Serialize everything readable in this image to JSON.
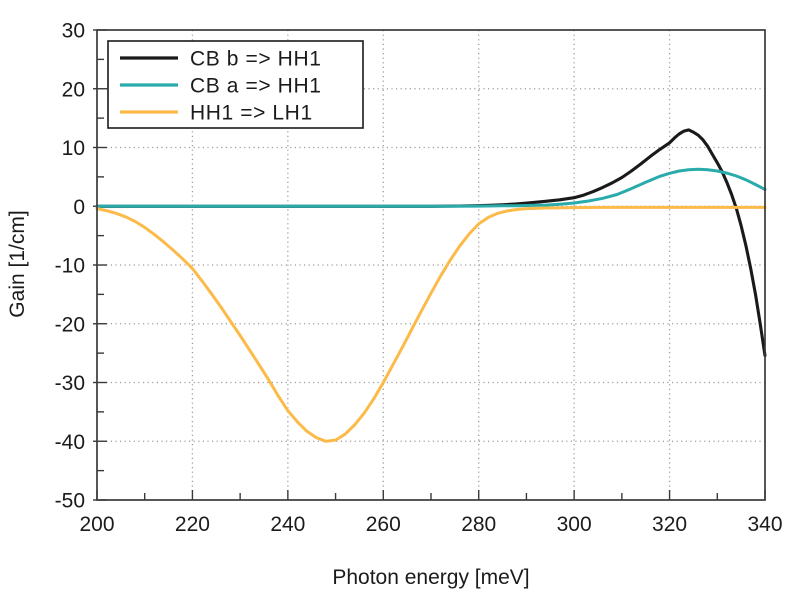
{
  "figure": {
    "background": "#ffffff",
    "frame_color": "#3a3a3a",
    "grid_color": "#9c9c9c",
    "text_color": "#1b1b1b"
  },
  "axes": {
    "x": {
      "label": "Photon energy [meV]",
      "min": 200,
      "max": 340,
      "major_ticks": [
        200,
        220,
        240,
        260,
        280,
        300,
        320,
        340
      ],
      "minor_ticks": [
        210,
        230,
        250,
        270,
        290,
        310,
        330
      ],
      "grid_at": [
        220,
        240,
        260,
        280,
        300,
        320
      ]
    },
    "y": {
      "label": "Gain [1/cm]",
      "min": -50,
      "max": 30,
      "major_ticks": [
        30,
        20,
        10,
        0,
        -10,
        -20,
        -30,
        -40,
        -50
      ],
      "minor_ticks": [
        25,
        15,
        5,
        -5,
        -15,
        -25,
        -35,
        -45
      ],
      "grid_at": [
        20,
        10,
        0,
        -10,
        -20,
        -30,
        -40
      ]
    }
  },
  "legend": {
    "position": "top-left",
    "entries": [
      {
        "label": "CB b => HH1",
        "color": "#1a1a1a"
      },
      {
        "label": "CB a => HH1",
        "color": "#2aabab"
      },
      {
        "label": "HH1 => LH1",
        "color": "#fcba49"
      }
    ]
  },
  "chart_data": {
    "type": "line",
    "title": "",
    "xlabel": "Photon energy [meV]",
    "ylabel": "Gain [1/cm]",
    "xlim": [
      200,
      340
    ],
    "ylim": [
      -50,
      30
    ],
    "grid": true,
    "legend_position": "top-left",
    "series": [
      {
        "name": "CB b => HH1",
        "color": "#1a1a1a",
        "width": 3.1,
        "points": [
          [
            200,
            0
          ],
          [
            220,
            0
          ],
          [
            240,
            0
          ],
          [
            260,
            0
          ],
          [
            270,
            0
          ],
          [
            276,
            0.05
          ],
          [
            280,
            0.1
          ],
          [
            283,
            0.18
          ],
          [
            285,
            0.25
          ],
          [
            288,
            0.4
          ],
          [
            291,
            0.6
          ],
          [
            294,
            0.85
          ],
          [
            297,
            1.1
          ],
          [
            300,
            1.45
          ],
          [
            302,
            1.9
          ],
          [
            304,
            2.5
          ],
          [
            306,
            3.2
          ],
          [
            308,
            4.0
          ],
          [
            310,
            4.9
          ],
          [
            312,
            6.0
          ],
          [
            314,
            7.2
          ],
          [
            316,
            8.5
          ],
          [
            318,
            9.7
          ],
          [
            320,
            10.8
          ],
          [
            321,
            11.6
          ],
          [
            322,
            12.3
          ],
          [
            323,
            12.8
          ],
          [
            324,
            13.0
          ],
          [
            325,
            12.6
          ],
          [
            326,
            12.1
          ],
          [
            327,
            11.3
          ],
          [
            328,
            10.2
          ],
          [
            329,
            8.8
          ],
          [
            330,
            7.4
          ],
          [
            331,
            5.9
          ],
          [
            332,
            4.1
          ],
          [
            333,
            2.0
          ],
          [
            334,
            -0.4
          ],
          [
            335,
            -3.3
          ],
          [
            336,
            -6.7
          ],
          [
            337,
            -10.6
          ],
          [
            338,
            -15.0
          ],
          [
            339,
            -20.0
          ],
          [
            340,
            -25.4
          ]
        ]
      },
      {
        "name": "CB a => HH1",
        "color": "#2aabab",
        "width": 3.0,
        "points": [
          [
            200,
            0
          ],
          [
            220,
            0
          ],
          [
            240,
            0
          ],
          [
            260,
            0
          ],
          [
            275,
            0
          ],
          [
            280,
            0.03
          ],
          [
            285,
            0.07
          ],
          [
            288,
            0.1
          ],
          [
            291,
            0.15
          ],
          [
            294,
            0.2
          ],
          [
            297,
            0.35
          ],
          [
            300,
            0.55
          ],
          [
            303,
            0.9
          ],
          [
            306,
            1.35
          ],
          [
            309,
            2.0
          ],
          [
            312,
            3.0
          ],
          [
            315,
            4.1
          ],
          [
            318,
            5.1
          ],
          [
            320,
            5.6
          ],
          [
            322,
            6.0
          ],
          [
            324,
            6.2
          ],
          [
            326,
            6.3
          ],
          [
            328,
            6.2
          ],
          [
            330,
            6.0
          ],
          [
            332,
            5.65
          ],
          [
            334,
            5.15
          ],
          [
            336,
            4.5
          ],
          [
            338,
            3.7
          ],
          [
            340,
            2.85
          ]
        ]
      },
      {
        "name": "HH1 => LH1",
        "color": "#fcba49",
        "width": 3.0,
        "points": [
          [
            200,
            -0.4
          ],
          [
            202,
            -0.75
          ],
          [
            204,
            -1.2
          ],
          [
            206,
            -1.8
          ],
          [
            208,
            -2.6
          ],
          [
            210,
            -3.6
          ],
          [
            212,
            -4.8
          ],
          [
            214,
            -6.1
          ],
          [
            216,
            -7.5
          ],
          [
            218,
            -9.0
          ],
          [
            220,
            -10.6
          ],
          [
            222,
            -12.7
          ],
          [
            224,
            -14.9
          ],
          [
            226,
            -17.2
          ],
          [
            228,
            -19.6
          ],
          [
            230,
            -22.0
          ],
          [
            232,
            -24.5
          ],
          [
            234,
            -27.0
          ],
          [
            236,
            -29.6
          ],
          [
            238,
            -32.3
          ],
          [
            240,
            -34.8
          ],
          [
            242,
            -36.7
          ],
          [
            244,
            -38.3
          ],
          [
            246,
            -39.4
          ],
          [
            248,
            -40.0
          ],
          [
            250,
            -39.8
          ],
          [
            252,
            -38.8
          ],
          [
            254,
            -37.2
          ],
          [
            256,
            -35.2
          ],
          [
            258,
            -32.8
          ],
          [
            260,
            -30.0
          ],
          [
            262,
            -27.0
          ],
          [
            264,
            -24.0
          ],
          [
            266,
            -20.9
          ],
          [
            268,
            -17.8
          ],
          [
            270,
            -14.8
          ],
          [
            272,
            -11.9
          ],
          [
            274,
            -9.2
          ],
          [
            276,
            -6.8
          ],
          [
            278,
            -4.7
          ],
          [
            280,
            -3.0
          ],
          [
            282,
            -1.9
          ],
          [
            284,
            -1.2
          ],
          [
            286,
            -0.8
          ],
          [
            288,
            -0.55
          ],
          [
            290,
            -0.4
          ],
          [
            294,
            -0.3
          ],
          [
            298,
            -0.25
          ],
          [
            305,
            -0.2
          ],
          [
            315,
            -0.2
          ],
          [
            325,
            -0.2
          ],
          [
            340,
            -0.2
          ]
        ]
      }
    ]
  }
}
